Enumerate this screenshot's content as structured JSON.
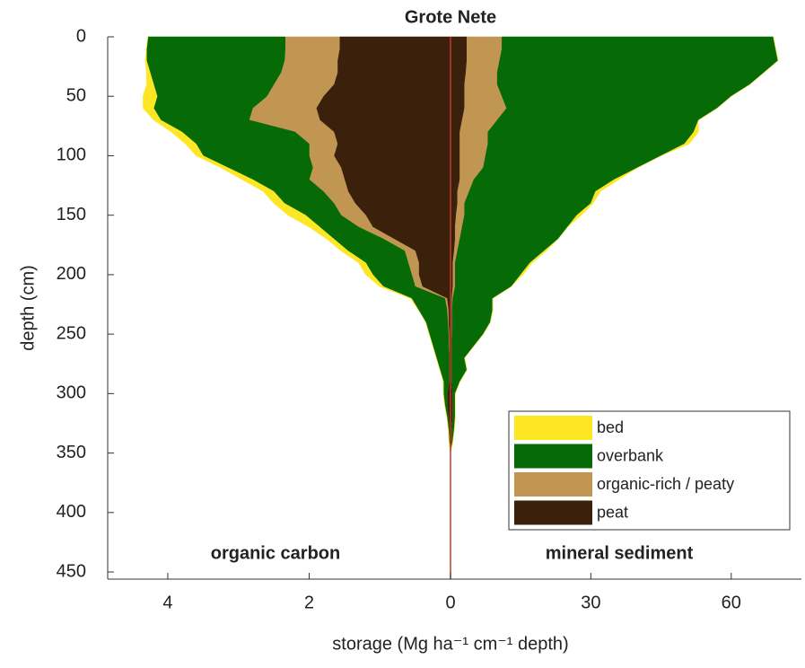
{
  "chart_data": {
    "type": "butterfly_area",
    "title": "Grote Nete",
    "ylabel": "depth (cm)",
    "xlabel": "storage (Mg ha⁻¹ cm⁻¹ depth)",
    "annotations": [
      "organic carbon",
      "mineral sediment"
    ],
    "depth": [
      0,
      10,
      20,
      30,
      40,
      50,
      60,
      70,
      80,
      90,
      100,
      110,
      120,
      130,
      140,
      150,
      160,
      170,
      180,
      190,
      200,
      210,
      220,
      230,
      240,
      250,
      260,
      270,
      280,
      290,
      300,
      310,
      320,
      330,
      340,
      350
    ],
    "ylim": [
      0,
      456
    ],
    "yticks": [
      0,
      50,
      100,
      150,
      200,
      250,
      300,
      350,
      400,
      450
    ],
    "xlim_left": [
      0,
      4.85
    ],
    "xticks_left": [
      2,
      4
    ],
    "xlim_right": [
      0,
      75
    ],
    "xticks_right": [
      0,
      30,
      60
    ],
    "center_line_color": "#c0392b",
    "series": [
      {
        "name": "peat",
        "color": "#3b200c",
        "values_left": [
          1.57,
          1.57,
          1.6,
          1.6,
          1.65,
          1.8,
          1.9,
          1.85,
          1.65,
          1.6,
          1.65,
          1.55,
          1.5,
          1.45,
          1.35,
          1.2,
          1.1,
          0.8,
          0.5,
          0.45,
          0.45,
          0.4,
          0.05,
          0.03,
          0.03,
          0.02,
          0.02,
          0.02,
          0.02,
          0.02,
          0.05,
          0.05,
          0.03,
          0.02,
          0.02,
          0
        ],
        "values_right": [
          3.5,
          3.5,
          3.5,
          3.3,
          3,
          3,
          3,
          2.5,
          2,
          2,
          2,
          2,
          2,
          1.5,
          1.5,
          1.2,
          1,
          1,
          0.8,
          0.5,
          0.5,
          0.5,
          0.3,
          0.3,
          0.3,
          0.3,
          0.3,
          0.3,
          0.3,
          0.3,
          0.5,
          0.5,
          0.5,
          0.3,
          0.3,
          0
        ]
      },
      {
        "name": "organic-rich / peaty",
        "color": "#c19552",
        "values_left": [
          0.77,
          0.77,
          0.75,
          0.8,
          0.85,
          0.8,
          0.9,
          1.0,
          0.55,
          0.4,
          0.35,
          0.4,
          0.5,
          0.35,
          0.3,
          0.35,
          0.2,
          0.15,
          0.15,
          0.15,
          0.1,
          0.1,
          0.03,
          0.02,
          0.01,
          0.01,
          0.01,
          0,
          0,
          0,
          0,
          0,
          0,
          0,
          0,
          0
        ],
        "values_right": [
          7.5,
          7.5,
          7,
          6.7,
          7,
          8,
          9,
          7.5,
          6,
          6,
          5.5,
          5,
          3,
          2.5,
          1.5,
          1.8,
          1.5,
          1,
          0.7,
          0.5,
          0.5,
          0.5,
          0.2,
          0.1,
          0.1,
          0.1,
          0,
          0,
          0,
          0,
          0,
          0,
          0,
          0,
          0,
          0
        ]
      },
      {
        "name": "overbank",
        "color": "#066a06",
        "values_left": [
          1.94,
          1.96,
          1.95,
          1.85,
          1.7,
          1.55,
          1.4,
          1.25,
          1.6,
          1.6,
          1.5,
          1.2,
          0.8,
          0.7,
          0.7,
          0.5,
          0.55,
          0.7,
          0.8,
          0.6,
          0.55,
          0.45,
          0.47,
          0.4,
          0.31,
          0.27,
          0.22,
          0.18,
          0.13,
          0.08,
          0.05,
          0.03,
          0.02,
          0.01,
          0,
          0
        ],
        "values_right": [
          58,
          58.5,
          59.5,
          57,
          54,
          49,
          45,
          43,
          44,
          42,
          37.5,
          33,
          30,
          27,
          27,
          24,
          22.5,
          21,
          18.5,
          16,
          14,
          12,
          8.5,
          8.6,
          8.1,
          6.6,
          4.7,
          2.7,
          3.2,
          1.7,
          0.5,
          0.5,
          0.5,
          0.5,
          0.2,
          0
        ]
      },
      {
        "name": "bed",
        "color": "#fde725",
        "values_left": [
          0,
          0,
          0.02,
          0.05,
          0.1,
          0.2,
          0.15,
          0.1,
          0.15,
          0.15,
          0.1,
          0.1,
          0.15,
          0.15,
          0.15,
          0.25,
          0.15,
          0.1,
          0.1,
          0.1,
          0.1,
          0.05,
          0.02,
          0,
          0,
          0,
          0,
          0,
          0,
          0,
          0,
          0,
          0,
          0,
          0,
          0
        ],
        "values_right": [
          0,
          0,
          0,
          0,
          0,
          0,
          0,
          0,
          1,
          1,
          0,
          0,
          1,
          1,
          0.5,
          1,
          0,
          0,
          0.5,
          0.5,
          0.5,
          0,
          0,
          0,
          0,
          0,
          0,
          0,
          0,
          0,
          0,
          0,
          0,
          0,
          0,
          0
        ]
      }
    ],
    "legend_order": [
      3,
      2,
      1,
      0
    ],
    "legend": "lower right"
  }
}
